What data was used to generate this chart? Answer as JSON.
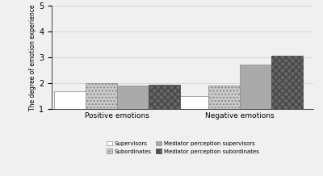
{
  "categories": [
    "Positive emotions",
    "Negative emotions"
  ],
  "series": {
    "Supervisors": [
      1.7,
      1.5
    ],
    "Subordinates": [
      2.0,
      1.9
    ],
    "Mediator perception supervisors": [
      1.9,
      2.7
    ],
    "Mediator perception subordinates": [
      1.95,
      3.05
    ]
  },
  "bar_styles": [
    {
      "hatch": "",
      "facecolor": "#ffffff",
      "edgecolor": "#888888",
      "label": "Supervisors"
    },
    {
      "hatch": "....",
      "facecolor": "#cccccc",
      "edgecolor": "#888888",
      "label": "Subordinates"
    },
    {
      "hatch": "",
      "facecolor": "#aaaaaa",
      "edgecolor": "#888888",
      "label": "Mediator perception supervisors"
    },
    {
      "hatch": "xxxx",
      "facecolor": "#666666",
      "edgecolor": "#444444",
      "label": "Mediator perception subordinates"
    }
  ],
  "ylabel": "The degree of emotion experience",
  "ylim": [
    1,
    5
  ],
  "yticks": [
    1,
    2,
    3,
    4,
    5
  ],
  "background_color": "#f0f0f0",
  "legend_ncol": 2,
  "bar_width": 0.12,
  "group_centers": [
    0.25,
    0.72
  ]
}
